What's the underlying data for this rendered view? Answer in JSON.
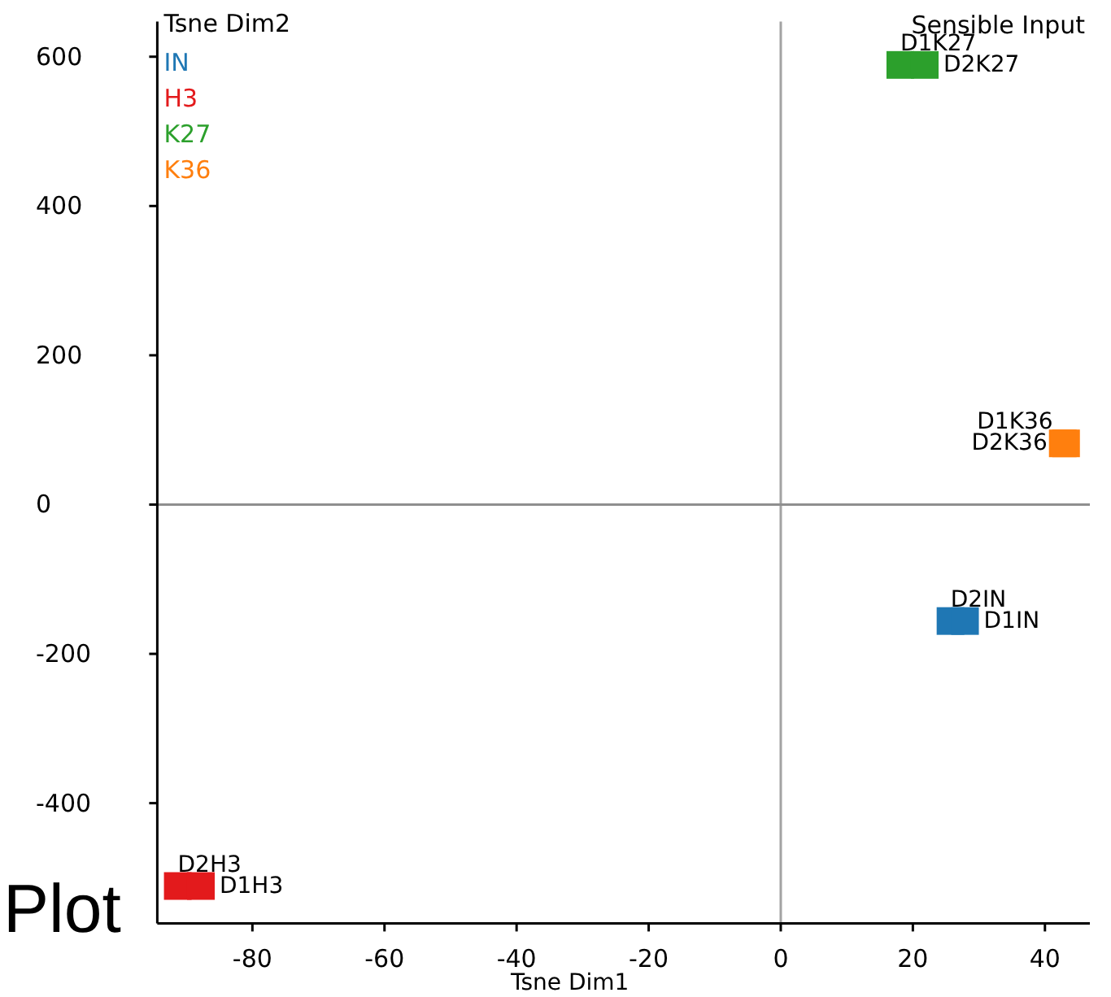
{
  "chart_data": {
    "type": "scatter",
    "title": "Sensible Input",
    "xlabel": "Tsne Dim1",
    "ylabel": "Tsne Dim2",
    "annotations": [
      "Plot"
    ],
    "xlim": [
      -94.4,
      46.8
    ],
    "ylim": [
      -561,
      647
    ],
    "xticks": [
      -80,
      -60,
      -40,
      -20,
      0,
      20,
      40
    ],
    "yticks": [
      -400,
      -200,
      0,
      200,
      400,
      600
    ],
    "marker": "square",
    "legend": "top left",
    "ref_lines": [
      {
        "axis": "x",
        "value": 0,
        "color": "#a3a3a3"
      },
      {
        "axis": "y",
        "value": 0,
        "color": "#8f8f8f"
      }
    ],
    "series": [
      {
        "name": "IN",
        "color": "#1f77b4",
        "x": [
          25.7,
          27.9
        ],
        "values": [
          -156,
          -156
        ],
        "value_labels": [
          "D2IN",
          "D1IN"
        ]
      },
      {
        "name": "H3",
        "color": "#e31a1c",
        "x": [
          -91.3,
          -87.8
        ],
        "values": [
          -511,
          -511
        ],
        "value_labels": [
          "D2H3",
          "D1H3"
        ]
      },
      {
        "name": "K27",
        "color": "#2ca02c",
        "x": [
          18.1,
          21.8
        ],
        "values": [
          589,
          589
        ],
        "value_labels": [
          "D1K27",
          "D2K27"
        ]
      },
      {
        "name": "K36",
        "color": "#ff7f0e",
        "x": [
          42.7,
          43.2
        ],
        "values": [
          82,
          82
        ],
        "value_labels": [
          "D1K36",
          "D2K36"
        ]
      }
    ]
  }
}
